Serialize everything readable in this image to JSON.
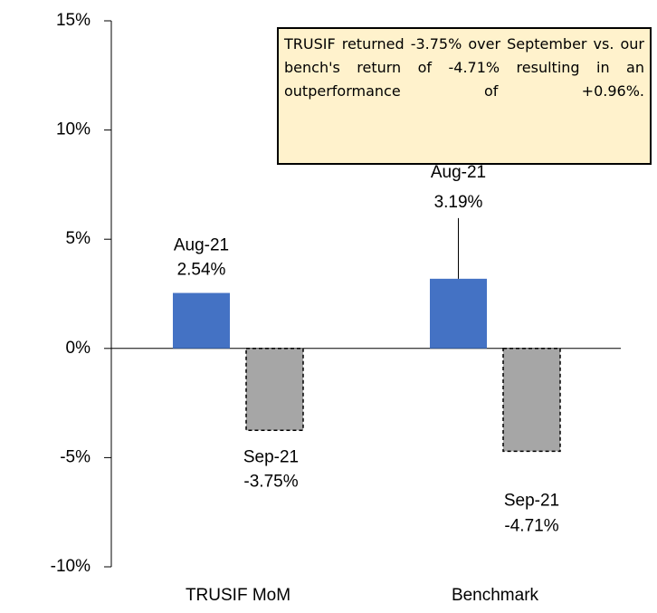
{
  "chart_data": {
    "type": "bar",
    "categories": [
      "TRUSIF MoM",
      "Benchmark"
    ],
    "series": [
      {
        "name": "Aug-21",
        "color": "#4472c4",
        "values": [
          2.54,
          3.19
        ],
        "value_labels": [
          "2.54%",
          "3.19%"
        ]
      },
      {
        "name": "Sep-21",
        "color": "#a6a6a6",
        "line_style": "dashed",
        "values": [
          -3.75,
          -4.71
        ],
        "value_labels": [
          "-3.75%",
          "-4.71%"
        ]
      }
    ],
    "ylim": [
      -10,
      15
    ],
    "yticks": [
      {
        "value": -10,
        "label": "-10%"
      },
      {
        "value": -5,
        "label": "-5%"
      },
      {
        "value": 0,
        "label": "0%"
      },
      {
        "value": 5,
        "label": "5%"
      },
      {
        "value": 10,
        "label": "10%"
      },
      {
        "value": 15,
        "label": "15%"
      }
    ],
    "annotation": "TRUSIF returned -3.75% over September vs. our bench's return of -4.71% resulting in an outperformance of +0.96%.",
    "grid": false
  }
}
